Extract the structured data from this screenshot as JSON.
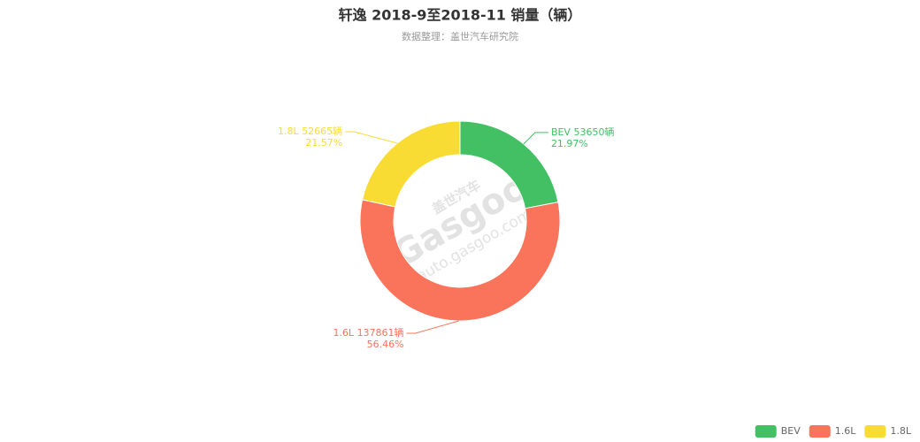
{
  "chart_data": {
    "type": "donut",
    "title": "轩逸 2018-9至2018-11 销量（辆）",
    "subtitle": "数据整理：盖世汽车研究院",
    "categories": [
      "BEV",
      "1.6L",
      "1.8L"
    ],
    "values": [
      53650,
      137861,
      52665
    ],
    "value_labels": [
      "53650辆",
      "137861辆",
      "52665辆"
    ],
    "percent_labels": [
      "21.97%",
      "56.46%",
      "21.57%"
    ],
    "colors": [
      "#43c063",
      "#fa735b",
      "#f8dc34"
    ],
    "legend": "bottom-right",
    "watermark": [
      "盖世汽车",
      "Gasgoo",
      "auto.gasgoo.com"
    ]
  }
}
